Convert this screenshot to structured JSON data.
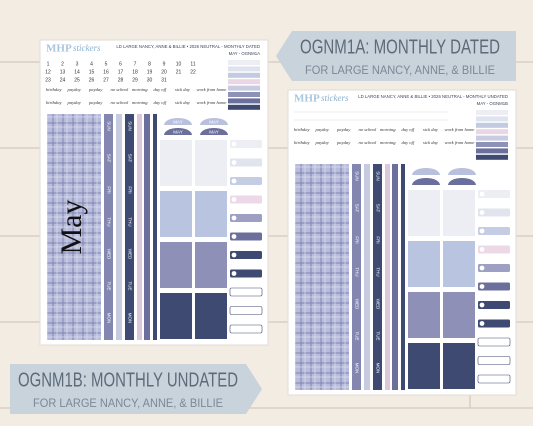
{
  "banners": [
    {
      "title": "OGNM1A: MONTHLY DATED",
      "subtitle": "FOR LARGE NANCY, ANNE, & BILLIE"
    },
    {
      "title": "OGNM1B: MONTHLY UNDATED",
      "subtitle": "FOR LARGE NANCY, ANNE, & BILLIE"
    }
  ],
  "sheets": [
    {
      "logo": "MHP",
      "logo_sub": "stickers",
      "header": "LD LARGE NANCY, ANNE & BILLIE • 2026 NEUTRAL - MONTHLY DATED",
      "code": "MAY - OGNM1A",
      "month": "May",
      "tab": "MAY",
      "dates": [
        1,
        2,
        3,
        4,
        5,
        6,
        7,
        8,
        9,
        10,
        11,
        12,
        13,
        14,
        15,
        16,
        17,
        18,
        19,
        20,
        21,
        22,
        23,
        24,
        25,
        26,
        27,
        28,
        29,
        30,
        31
      ]
    },
    {
      "logo": "MHP",
      "logo_sub": "stickers",
      "header": "LD LARGE NANCY, ANNE & BILLIE • 2026 NEUTRAL - MONTHLY UNDATED",
      "code": "MAY - OGNM1B"
    }
  ],
  "labels": [
    "birthday",
    "payday",
    "payday",
    "no school",
    "morning",
    "day off",
    "sick day",
    "work from home"
  ],
  "weekdays": [
    "SUN",
    "SAT",
    "FRI",
    "THU",
    "WED",
    "TUE",
    "MON"
  ]
}
